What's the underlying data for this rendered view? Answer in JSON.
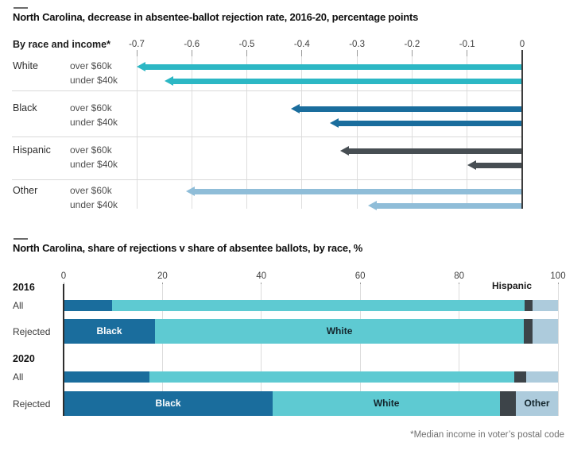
{
  "footnote": "*Median income in voter’s postal code",
  "chart_data": [
    {
      "type": "bar",
      "subtype": "horizontal-arrows",
      "title": "North Carolina, decrease in absentee-ballot rejection rate, 2016-20, percentage points",
      "group_label": "By race and income*",
      "xlim": [
        -0.7,
        0
      ],
      "x_tick_values": [
        -0.7,
        -0.6,
        -0.5,
        -0.4,
        -0.3,
        -0.2,
        -0.1,
        0
      ],
      "x_tick_labels": [
        "-0.7",
        "-0.6",
        "-0.5",
        "-0.4",
        "-0.3",
        "-0.2",
        "-0.1",
        "0"
      ],
      "grid": true,
      "groups": [
        {
          "race": "White",
          "color": "#2cb7c4",
          "rows": [
            {
              "income": "over $60k",
              "value": -0.7
            },
            {
              "income": "under $40k",
              "value": -0.65
            }
          ]
        },
        {
          "race": "Black",
          "color": "#1a6d9d",
          "rows": [
            {
              "income": "over $60k",
              "value": -0.42
            },
            {
              "income": "under $40k",
              "value": -0.35
            }
          ]
        },
        {
          "race": "Hispanic",
          "color": "#474e53",
          "rows": [
            {
              "income": "over $60k",
              "value": -0.33
            },
            {
              "income": "under $40k",
              "value": -0.1
            }
          ]
        },
        {
          "race": "Other",
          "color": "#8fbdd8",
          "rows": [
            {
              "income": "over $60k",
              "value": -0.61
            },
            {
              "income": "under $40k",
              "value": -0.28
            }
          ]
        }
      ]
    },
    {
      "type": "bar",
      "subtype": "stacked-horizontal",
      "title": "North Carolina, share of rejections v share of absentee ballots, by race, %",
      "xlim": [
        0,
        100
      ],
      "x_tick_values": [
        0,
        20,
        40,
        60,
        80,
        100
      ],
      "x_tick_labels": [
        "0",
        "20",
        "40",
        "60",
        "80",
        "100"
      ],
      "annotation": "Hispanic",
      "series": [
        "Black",
        "White",
        "Hispanic",
        "Other"
      ],
      "series_colors": [
        "#1a6d9d",
        "#5ecad2",
        "#3d4449",
        "#adcbdc"
      ],
      "rows": [
        {
          "group": "2016",
          "label": "All",
          "values": [
            9.8,
            83.5,
            1.6,
            5.1
          ],
          "segment_labels": [
            null,
            null,
            null,
            null
          ]
        },
        {
          "group": null,
          "label": "Rejected",
          "values": [
            18.5,
            74.6,
            1.8,
            5.1
          ],
          "segment_labels": [
            "Black",
            "White",
            null,
            null
          ]
        },
        {
          "group": "2020",
          "label": "All",
          "values": [
            17.4,
            73.8,
            2.3,
            6.5
          ],
          "segment_labels": [
            null,
            null,
            null,
            null
          ]
        },
        {
          "group": null,
          "label": "Rejected",
          "values": [
            42.3,
            46.0,
            3.2,
            8.5
          ],
          "segment_labels": [
            "Black",
            "White",
            null,
            "Other"
          ]
        }
      ]
    }
  ]
}
